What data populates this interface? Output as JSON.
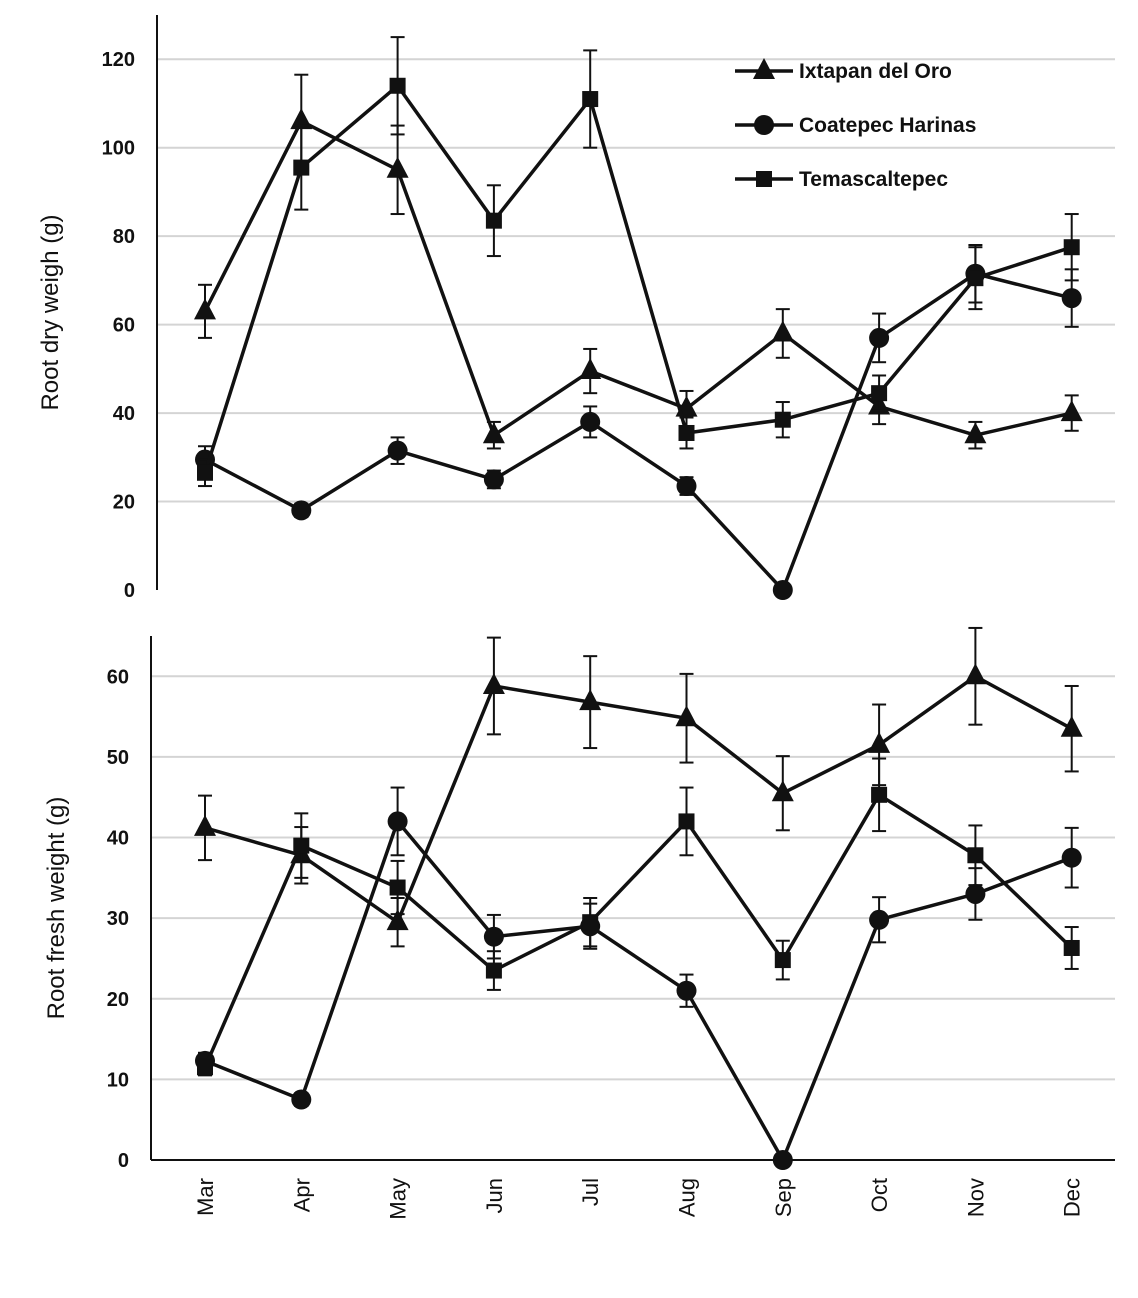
{
  "chart_data": [
    {
      "type": "line",
      "ylabel": "Root dry weigh (g)",
      "xlabel": "",
      "categories": [
        "Mar",
        "Apr",
        "May",
        "Jun",
        "Jul",
        "Aug",
        "Sep",
        "Oct",
        "Nov",
        "Dec"
      ],
      "yticks": [
        0,
        20,
        40,
        60,
        80,
        100,
        120
      ],
      "ylim": [
        0,
        130
      ],
      "grid": true,
      "legend": "top-right",
      "series": [
        {
          "name": "Ixtapan del Oro",
          "marker": "triangle",
          "values": [
            63,
            106,
            95,
            35,
            49.5,
            41,
            58,
            41.5,
            35,
            40
          ],
          "errors": [
            6,
            10.5,
            10,
            3,
            5,
            4,
            5.5,
            4,
            3,
            4
          ]
        },
        {
          "name": "Coatepec Harinas",
          "marker": "circle",
          "values": [
            29.5,
            18,
            31.5,
            25,
            38,
            23.5,
            0,
            57,
            71.5,
            66
          ],
          "errors": [
            3,
            1.5,
            3,
            2,
            3.5,
            2,
            0,
            5.5,
            6.5,
            6.5
          ]
        },
        {
          "name": "Temascaltepec",
          "marker": "square",
          "values": [
            26.5,
            95.5,
            114,
            83.5,
            111,
            35.5,
            38.5,
            44.5,
            70.5,
            77.5
          ],
          "errors": [
            3,
            9.5,
            11,
            8,
            11,
            3.5,
            4,
            4,
            7,
            7.5
          ]
        }
      ]
    },
    {
      "type": "line",
      "ylabel": "Root fresh weight (g)",
      "xlabel": "",
      "categories": [
        "Mar",
        "Apr",
        "May",
        "Jun",
        "Jul",
        "Aug",
        "Sep",
        "Oct",
        "Nov",
        "Dec"
      ],
      "yticks": [
        0,
        10,
        20,
        30,
        40,
        50,
        60
      ],
      "ylim": [
        0,
        65
      ],
      "grid": true,
      "legend": "none",
      "series": [
        {
          "name": "Ixtapan del Oro",
          "marker": "triangle",
          "values": [
            41.2,
            37.8,
            29.5,
            58.8,
            56.8,
            54.8,
            45.5,
            51.5,
            60,
            53.5
          ],
          "errors": [
            4,
            3.5,
            3,
            6,
            5.7,
            5.5,
            4.6,
            5,
            6,
            5.3
          ]
        },
        {
          "name": "Coatepec Harinas",
          "marker": "circle",
          "values": [
            12.3,
            7.5,
            42,
            27.7,
            29,
            21,
            0,
            29.8,
            33,
            37.5
          ],
          "errors": [
            1,
            0.8,
            4.2,
            2.7,
            2.8,
            2,
            0,
            2.8,
            3.2,
            3.7
          ]
        },
        {
          "name": "Temascaltepec",
          "marker": "square",
          "values": [
            11.5,
            39,
            33.8,
            23.5,
            29.5,
            42,
            24.8,
            45.3,
            37.8,
            26.3
          ],
          "errors": [
            1,
            4,
            3.3,
            2.4,
            3,
            4.2,
            2.4,
            4.5,
            3.7,
            2.6
          ]
        }
      ]
    }
  ]
}
